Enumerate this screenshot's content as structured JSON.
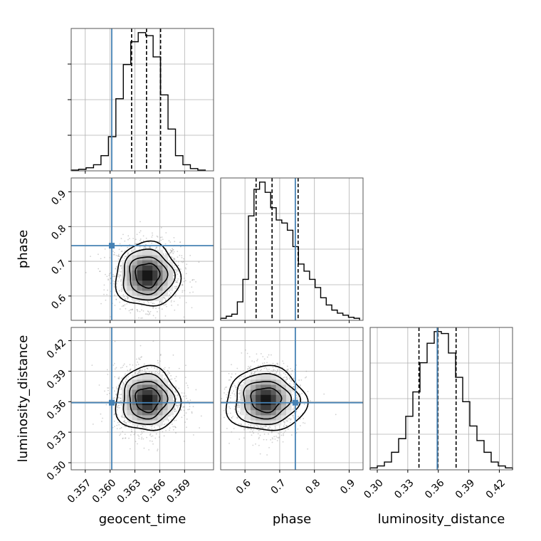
{
  "chart_data": {
    "type": "corner",
    "parameters": [
      "geocent_time",
      "phase",
      "luminosity_distance"
    ],
    "colors": {
      "truth": "#4682b4",
      "hist": "#000000",
      "grid": "#b0b0b0",
      "scatter": "#9a9a9a"
    },
    "grid": true,
    "truths": {
      "geocent_time": 0.3602,
      "phase": 0.745,
      "luminosity_distance": 0.359
    },
    "quantiles": {
      "geocent_time": [
        0.3626,
        0.3644,
        0.3661
      ],
      "phase": [
        0.632,
        0.678,
        0.753
      ],
      "luminosity_distance": [
        0.341,
        0.3595,
        0.3775
      ]
    },
    "ranges": {
      "geocent_time": [
        0.3553,
        0.3725
      ],
      "phase": [
        0.53,
        0.94
      ],
      "luminosity_distance": [
        0.293,
        0.433
      ]
    },
    "ticks": {
      "geocent_time": [
        0.357,
        0.36,
        0.363,
        0.366,
        0.369
      ],
      "phase": [
        0.6,
        0.7,
        0.8,
        0.9
      ],
      "luminosity_distance": [
        0.3,
        0.33,
        0.36,
        0.39,
        0.42
      ]
    },
    "tick_labels": {
      "geocent_time": [
        "0.357",
        "0.360",
        "0.363",
        "0.366",
        "0.369"
      ],
      "phase": [
        "0.6",
        "0.7",
        "0.8",
        "0.9"
      ],
      "luminosity_distance": [
        "0.30",
        "0.33",
        "0.36",
        "0.39",
        "0.42"
      ]
    },
    "marginal_histograms": {
      "geocent_time": {
        "bin_edges": [
          0.3553,
          0.3562,
          0.3571,
          0.358,
          0.3589,
          0.3598,
          0.3607,
          0.3616,
          0.3625,
          0.3634,
          0.3643,
          0.3652,
          0.3661,
          0.367,
          0.3679,
          0.3688,
          0.3697,
          0.3706,
          0.3715
        ],
        "counts": [
          1,
          2,
          4,
          8,
          20,
          45,
          95,
          140,
          170,
          182,
          178,
          150,
          100,
          55,
          20,
          8,
          3,
          1
        ]
      },
      "phase": {
        "bin_edges": [
          0.53,
          0.546,
          0.562,
          0.578,
          0.594,
          0.61,
          0.626,
          0.642,
          0.658,
          0.674,
          0.69,
          0.706,
          0.722,
          0.738,
          0.754,
          0.77,
          0.786,
          0.802,
          0.818,
          0.834,
          0.85,
          0.866,
          0.882,
          0.898,
          0.914,
          0.93
        ],
        "counts": [
          2,
          4,
          6,
          18,
          40,
          102,
          128,
          135,
          125,
          110,
          98,
          95,
          88,
          72,
          55,
          48,
          40,
          32,
          22,
          15,
          10,
          7,
          5,
          3,
          2
        ]
      },
      "luminosity_distance": {
        "bin_edges": [
          0.293,
          0.3,
          0.307,
          0.314,
          0.321,
          0.328,
          0.335,
          0.342,
          0.349,
          0.356,
          0.363,
          0.37,
          0.377,
          0.384,
          0.391,
          0.398,
          0.405,
          0.412,
          0.419,
          0.426,
          0.433
        ],
        "counts": [
          2,
          4,
          8,
          18,
          32,
          55,
          80,
          110,
          130,
          142,
          140,
          120,
          95,
          70,
          45,
          30,
          18,
          8,
          4,
          2
        ]
      }
    },
    "density_peaks": {
      "phase_vs_geocent_time": {
        "x": 0.3645,
        "y": 0.66
      },
      "luminosity_distance_vs_geocent_time": {
        "x": 0.3645,
        "y": 0.362
      },
      "luminosity_distance_vs_phase": {
        "x": 0.66,
        "y": 0.362
      }
    },
    "panels": [
      {
        "row": 0,
        "col": 0,
        "kind": "hist",
        "param": "geocent_time"
      },
      {
        "row": 1,
        "col": 0,
        "kind": "2d",
        "x": "geocent_time",
        "y": "phase"
      },
      {
        "row": 1,
        "col": 1,
        "kind": "hist",
        "param": "phase"
      },
      {
        "row": 2,
        "col": 0,
        "kind": "2d",
        "x": "geocent_time",
        "y": "luminosity_distance"
      },
      {
        "row": 2,
        "col": 1,
        "kind": "2d",
        "x": "phase",
        "y": "luminosity_distance"
      },
      {
        "row": 2,
        "col": 2,
        "kind": "hist",
        "param": "luminosity_distance"
      }
    ]
  }
}
